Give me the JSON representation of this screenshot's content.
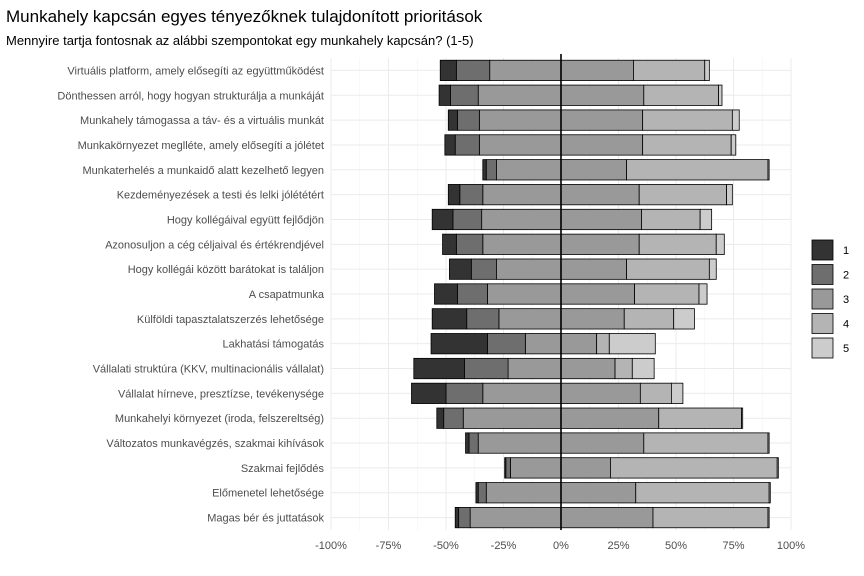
{
  "chart_data": {
    "type": "bar",
    "orientation": "horizontal",
    "stacking": "diverging",
    "title": "Munkahely kapcsán egyes tényezőknek tulajdonított prioritások",
    "subtitle": "Mennyire tartja fontosnak az alábbi szempontokat egy munkahely kapcsán? (1-5)",
    "xlabel": "",
    "ylabel": "",
    "xlim": [
      -1.0,
      1.0
    ],
    "x_ticks": [
      -1.0,
      -0.75,
      -0.5,
      -0.25,
      0,
      0.25,
      0.5,
      0.75,
      1.0
    ],
    "x_tick_labels": [
      "-100%",
      "-75%",
      "-50%",
      "-25%",
      "0%",
      "25%",
      "50%",
      "75%",
      "100%"
    ],
    "grid": true,
    "legend_position": "right",
    "levels": [
      "1",
      "2",
      "3",
      "4",
      "5"
    ],
    "level_colors": [
      "#333333",
      "#6e6e6e",
      "#999999",
      "#b4b4b4",
      "#cccccc"
    ],
    "categories": [
      "Virtuális platform, amely elősegíti az együttműködést",
      "Dönthessen arról, hogy hogyan strukturálja a munkáját",
      "Munkahely támogassa a táv- és a virtuális munkát",
      "Munkakörnyezet meglléte, amely elősegíti a jólétet",
      "Munkaterhelés a munkaidő alatt kezelhető legyen",
      "Kezdeményezések a testi és lelki jólététért",
      "Hogy kollégáival együtt fejlődjön",
      "Azonosuljon a cég céljaival és értékrendjével",
      "Hogy kollégái között barátokat is találjon",
      "A csapatmunka",
      "Külföldi tapasztalatszerzés lehetősége",
      "Lakhatási támogatás",
      "Vállalati struktúra (KKV, multinacionális vállalat)",
      "Vállalat hírneve, presztízse, tevékenysége",
      "Munkahelyi környezet (iroda, felszereltség)",
      "Változatos munkavégzés, szakmai kihívások",
      "Szakmai fejlődés",
      "Előmenetel lehetősége",
      "Magas bér és juttatások"
    ],
    "negative_segments": [
      [
        {
          "level": "3",
          "start": 0,
          "end": -0.31
        },
        {
          "level": "2",
          "start": -0.31,
          "end": -0.455
        },
        {
          "level": "1",
          "start": -0.455,
          "end": -0.525
        }
      ],
      [
        {
          "level": "3",
          "start": 0,
          "end": -0.36
        },
        {
          "level": "2",
          "start": -0.36,
          "end": -0.48
        },
        {
          "level": "1",
          "start": -0.48,
          "end": -0.53
        }
      ],
      [
        {
          "level": "3",
          "start": 0,
          "end": -0.355
        },
        {
          "level": "2",
          "start": -0.355,
          "end": -0.45
        },
        {
          "level": "1",
          "start": -0.45,
          "end": -0.49
        }
      ],
      [
        {
          "level": "3",
          "start": 0,
          "end": -0.355
        },
        {
          "level": "2",
          "start": -0.355,
          "end": -0.46
        },
        {
          "level": "1",
          "start": -0.46,
          "end": -0.505
        }
      ],
      [
        {
          "level": "3",
          "start": 0,
          "end": -0.28
        },
        {
          "level": "2",
          "start": -0.28,
          "end": -0.325
        },
        {
          "level": "1",
          "start": -0.325,
          "end": -0.34
        }
      ],
      [
        {
          "level": "3",
          "start": 0,
          "end": -0.34
        },
        {
          "level": "2",
          "start": -0.34,
          "end": -0.44
        },
        {
          "level": "1",
          "start": -0.44,
          "end": -0.49
        }
      ],
      [
        {
          "level": "3",
          "start": 0,
          "end": -0.345
        },
        {
          "level": "2",
          "start": -0.345,
          "end": -0.47
        },
        {
          "level": "1",
          "start": -0.47,
          "end": -0.56
        }
      ],
      [
        {
          "level": "3",
          "start": 0,
          "end": -0.34
        },
        {
          "level": "2",
          "start": -0.34,
          "end": -0.455
        },
        {
          "level": "1",
          "start": -0.455,
          "end": -0.515
        }
      ],
      [
        {
          "level": "3",
          "start": 0,
          "end": -0.28
        },
        {
          "level": "2",
          "start": -0.28,
          "end": -0.39
        },
        {
          "level": "1",
          "start": -0.39,
          "end": -0.485
        }
      ],
      [
        {
          "level": "3",
          "start": 0,
          "end": -0.32
        },
        {
          "level": "2",
          "start": -0.32,
          "end": -0.45
        },
        {
          "level": "1",
          "start": -0.45,
          "end": -0.55
        }
      ],
      [
        {
          "level": "3",
          "start": 0,
          "end": -0.27
        },
        {
          "level": "2",
          "start": -0.27,
          "end": -0.41
        },
        {
          "level": "1",
          "start": -0.41,
          "end": -0.56
        }
      ],
      [
        {
          "level": "3",
          "start": 0,
          "end": -0.155
        },
        {
          "level": "2",
          "start": -0.155,
          "end": -0.32
        },
        {
          "level": "1",
          "start": -0.32,
          "end": -0.565
        }
      ],
      [
        {
          "level": "3",
          "start": 0,
          "end": -0.23
        },
        {
          "level": "2",
          "start": -0.23,
          "end": -0.42
        },
        {
          "level": "1",
          "start": -0.42,
          "end": -0.64
        }
      ],
      [
        {
          "level": "3",
          "start": 0,
          "end": -0.34
        },
        {
          "level": "2",
          "start": -0.34,
          "end": -0.5
        },
        {
          "level": "1",
          "start": -0.5,
          "end": -0.65
        }
      ],
      [
        {
          "level": "3",
          "start": 0,
          "end": -0.425
        },
        {
          "level": "2",
          "start": -0.425,
          "end": -0.51
        },
        {
          "level": "1",
          "start": -0.51,
          "end": -0.54
        }
      ],
      [
        {
          "level": "3",
          "start": 0,
          "end": -0.36
        },
        {
          "level": "2",
          "start": -0.36,
          "end": -0.4
        },
        {
          "level": "1",
          "start": -0.4,
          "end": -0.415
        }
      ],
      [
        {
          "level": "3",
          "start": 0,
          "end": -0.22
        },
        {
          "level": "2",
          "start": -0.22,
          "end": -0.24
        },
        {
          "level": "1",
          "start": -0.24,
          "end": -0.245
        }
      ],
      [
        {
          "level": "3",
          "start": 0,
          "end": -0.325
        },
        {
          "level": "2",
          "start": -0.325,
          "end": -0.36
        },
        {
          "level": "1",
          "start": -0.36,
          "end": -0.37
        }
      ],
      [
        {
          "level": "3",
          "start": 0,
          "end": -0.395
        },
        {
          "level": "2",
          "start": -0.395,
          "end": -0.445
        },
        {
          "level": "1",
          "start": -0.445,
          "end": -0.46
        }
      ]
    ],
    "positive_segments": [
      [
        {
          "level": "3",
          "start": 0,
          "end": 0.315
        },
        {
          "level": "4",
          "start": 0.315,
          "end": 0.625
        },
        {
          "level": "5",
          "start": 0.625,
          "end": 0.645
        }
      ],
      [
        {
          "level": "3",
          "start": 0,
          "end": 0.36
        },
        {
          "level": "4",
          "start": 0.36,
          "end": 0.685
        },
        {
          "level": "5",
          "start": 0.685,
          "end": 0.7
        }
      ],
      [
        {
          "level": "3",
          "start": 0,
          "end": 0.355
        },
        {
          "level": "4",
          "start": 0.355,
          "end": 0.745
        },
        {
          "level": "5",
          "start": 0.745,
          "end": 0.775
        }
      ],
      [
        {
          "level": "3",
          "start": 0,
          "end": 0.355
        },
        {
          "level": "4",
          "start": 0.355,
          "end": 0.74
        },
        {
          "level": "5",
          "start": 0.74,
          "end": 0.76
        }
      ],
      [
        {
          "level": "3",
          "start": 0,
          "end": 0.285
        },
        {
          "level": "4",
          "start": 0.285,
          "end": 0.9
        },
        {
          "level": "5",
          "start": 0.9,
          "end": 0.905
        }
      ],
      [
        {
          "level": "3",
          "start": 0,
          "end": 0.34
        },
        {
          "level": "4",
          "start": 0.34,
          "end": 0.72
        },
        {
          "level": "5",
          "start": 0.72,
          "end": 0.745
        }
      ],
      [
        {
          "level": "3",
          "start": 0,
          "end": 0.35
        },
        {
          "level": "4",
          "start": 0.35,
          "end": 0.605
        },
        {
          "level": "5",
          "start": 0.605,
          "end": 0.655
        }
      ],
      [
        {
          "level": "3",
          "start": 0,
          "end": 0.34
        },
        {
          "level": "4",
          "start": 0.34,
          "end": 0.675
        },
        {
          "level": "5",
          "start": 0.675,
          "end": 0.71
        }
      ],
      [
        {
          "level": "3",
          "start": 0,
          "end": 0.285
        },
        {
          "level": "4",
          "start": 0.285,
          "end": 0.645
        },
        {
          "level": "5",
          "start": 0.645,
          "end": 0.675
        }
      ],
      [
        {
          "level": "3",
          "start": 0,
          "end": 0.32
        },
        {
          "level": "4",
          "start": 0.32,
          "end": 0.6
        },
        {
          "level": "5",
          "start": 0.6,
          "end": 0.635
        }
      ],
      [
        {
          "level": "3",
          "start": 0,
          "end": 0.275
        },
        {
          "level": "4",
          "start": 0.275,
          "end": 0.49
        },
        {
          "level": "5",
          "start": 0.49,
          "end": 0.58
        }
      ],
      [
        {
          "level": "3",
          "start": 0,
          "end": 0.155
        },
        {
          "level": "4",
          "start": 0.155,
          "end": 0.21
        },
        {
          "level": "5",
          "start": 0.21,
          "end": 0.41
        }
      ],
      [
        {
          "level": "3",
          "start": 0,
          "end": 0.235
        },
        {
          "level": "4",
          "start": 0.235,
          "end": 0.31
        },
        {
          "level": "5",
          "start": 0.31,
          "end": 0.405
        }
      ],
      [
        {
          "level": "3",
          "start": 0,
          "end": 0.345
        },
        {
          "level": "4",
          "start": 0.345,
          "end": 0.48
        },
        {
          "level": "5",
          "start": 0.48,
          "end": 0.53
        }
      ],
      [
        {
          "level": "3",
          "start": 0,
          "end": 0.425
        },
        {
          "level": "4",
          "start": 0.425,
          "end": 0.785
        },
        {
          "level": "5",
          "start": 0.785,
          "end": 0.79
        }
      ],
      [
        {
          "level": "3",
          "start": 0,
          "end": 0.36
        },
        {
          "level": "4",
          "start": 0.36,
          "end": 0.9
        },
        {
          "level": "5",
          "start": 0.9,
          "end": 0.905
        }
      ],
      [
        {
          "level": "3",
          "start": 0,
          "end": 0.215
        },
        {
          "level": "4",
          "start": 0.215,
          "end": 0.94
        },
        {
          "level": "5",
          "start": 0.94,
          "end": 0.945
        }
      ],
      [
        {
          "level": "3",
          "start": 0,
          "end": 0.325
        },
        {
          "level": "4",
          "start": 0.325,
          "end": 0.905
        },
        {
          "level": "5",
          "start": 0.905,
          "end": 0.91
        }
      ],
      [
        {
          "level": "3",
          "start": 0,
          "end": 0.4
        },
        {
          "level": "4",
          "start": 0.4,
          "end": 0.9
        },
        {
          "level": "5",
          "start": 0.9,
          "end": 0.905
        }
      ]
    ]
  }
}
